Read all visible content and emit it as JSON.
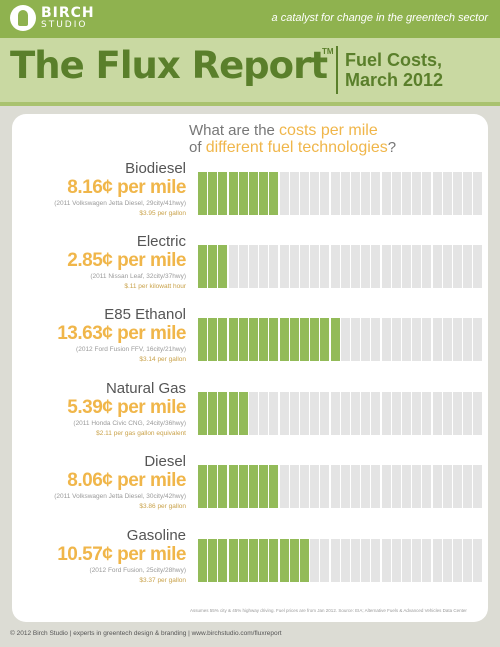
{
  "brand": {
    "name_top": "BIRCH",
    "name_bottom": "STUDIO",
    "tagline": "a catalyst for change in the greentech sector"
  },
  "header": {
    "title": "The Flux Report",
    "tm": "TM",
    "subtitle_line1": "Fuel Costs,",
    "subtitle_line2": "March 2012"
  },
  "question": {
    "part1": "What are the ",
    "highlight1": "costs per mile",
    "part2": "of ",
    "highlight2": "different fuel technologies",
    "part3": "?"
  },
  "colors": {
    "green_dark": "#5a7f2b",
    "green_bar": "#93bb59",
    "green_top": "#8fb24f",
    "orange": "#f0b64a",
    "gray_bar": "#e4e4e4"
  },
  "chart_data": {
    "type": "bar",
    "orientation": "horizontal",
    "unit": "¢ per mile",
    "total_segments": 28,
    "categories": [
      "Biodiesel",
      "Electric",
      "E85 Ethanol",
      "Natural Gas",
      "Diesel",
      "Gasoline"
    ],
    "values": [
      8.16,
      2.85,
      13.63,
      5.39,
      8.06,
      10.57
    ],
    "filled_segments": [
      8,
      3,
      14,
      5,
      8,
      11
    ],
    "cost_labels": [
      "8.16¢ per mile",
      "2.85¢ per mile",
      "13.63¢ per mile",
      "5.39¢ per mile",
      "8.06¢ per mile",
      "10.57¢ per mile"
    ],
    "vehicles": [
      "(2011 Volkswagen Jetta Diesel, 29city/41hwy)",
      "(2011 Nissan Leaf, 32city/37hwy)",
      "(2012 Ford Fusion FFV, 16city/21hwy)",
      "(2011 Honda Civic CNG, 24city/36hwy)",
      "(2011 Volkswagen Jetta Diesel, 30city/42hwy)",
      "(2012 Ford Fusion, 25city/28hwy)"
    ],
    "prices": [
      "$3.95 per gallon",
      "$.11 per kilowatt hour",
      "$3.14 per gallon",
      "$2.11 per gas gallon equivalent",
      "$3.86 per gallon",
      "$3.37 per gallon"
    ]
  },
  "footnote": "Assumes 55% city & 45% highway driving. Fuel prices are from Jan 2012. Source: EIA; Alternative Fuels & Advanced Vehicles Data Center",
  "footer": "© 2012 Birch Studio   |   experts in greentech design & branding   |   www.birchstudio.com/fluxreport"
}
